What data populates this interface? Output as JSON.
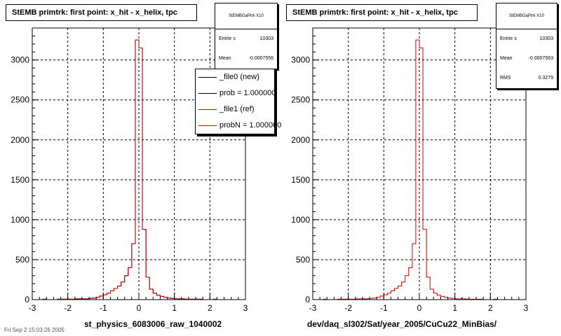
{
  "panels": [
    {
      "title": "StEMB primtrk: first point: x_hit - x_helix, tpc",
      "xlabel": "st_physics_6083006_raw_1040002",
      "stats": {
        "name": "StEMBGaPtrk X10",
        "rows": [
          {
            "label": "Entrie s",
            "value": "10303"
          },
          {
            "label": "Mean",
            "value": "-0.0007556"
          }
        ]
      },
      "legend": [
        {
          "label": "_file0 (new)",
          "color": "#000000"
        },
        {
          "label": "prob = 1.000000",
          "color": "#000000"
        },
        {
          "label": "_file1 (ref)",
          "color": "#cc0000"
        },
        {
          "label": "probN = 1.000000",
          "color": "#cc0000"
        }
      ]
    },
    {
      "title": "StEMB primtrk: first point: x_hit - x_helix, tpc",
      "xlabel": "dev/daq_sl302/Sat/year_2005/CuCu22_MinBias/",
      "stats": {
        "name": "StEMBGaPtrk X10",
        "rows": [
          {
            "label": "Entrie s",
            "value": "10303"
          },
          {
            "label": "Mean",
            "value": "-0.0007563"
          },
          {
            "label": "RMS",
            "value": "0.3279"
          }
        ]
      }
    }
  ],
  "footer_date": "Fri Sep 2 15:03:26 2005",
  "chart_data": [
    {
      "type": "histogram",
      "title": "StEMB primtrk: first point: x_hit - x_helix, tpc",
      "xlabel": "st_physics_6083006_raw_1040002",
      "xlim": [
        -3,
        3
      ],
      "ylim": [
        0,
        3400
      ],
      "xticks": [
        -3,
        -2,
        -1,
        0,
        1,
        2,
        3
      ],
      "yticks": [
        0,
        500,
        1000,
        1500,
        2000,
        2500,
        3000
      ],
      "grid": true,
      "bin_edges": [
        -3.0,
        -2.9,
        -2.8,
        -2.7,
        -2.6,
        -2.5,
        -2.4,
        -2.3,
        -2.2,
        -2.1,
        -2.0,
        -1.9,
        -1.8,
        -1.7,
        -1.6,
        -1.5,
        -1.4,
        -1.3,
        -1.2,
        -1.1,
        -1.0,
        -0.9,
        -0.8,
        -0.7,
        -0.6,
        -0.5,
        -0.4,
        -0.3,
        -0.2,
        -0.1,
        0.0,
        0.1,
        0.2,
        0.3,
        0.4,
        0.5,
        0.6,
        0.7,
        0.8,
        0.9,
        1.0,
        1.1,
        1.2,
        1.3,
        1.4,
        1.5,
        1.6,
        1.7,
        1.8,
        1.9,
        2.0,
        2.1,
        2.2,
        2.3,
        2.4,
        2.5,
        2.6,
        2.7,
        2.8,
        2.9,
        3.0
      ],
      "series": [
        {
          "color": "#000000",
          "values": [
            0,
            0,
            0,
            5,
            0,
            0,
            0,
            5,
            5,
            5,
            5,
            5,
            10,
            10,
            10,
            10,
            15,
            20,
            30,
            45,
            60,
            80,
            110,
            140,
            170,
            220,
            300,
            400,
            700,
            3250,
            3150,
            880,
            280,
            130,
            80,
            55,
            40,
            30,
            20,
            15,
            10,
            10,
            10,
            5,
            5,
            5,
            5,
            5,
            0,
            0,
            0,
            5,
            0,
            0,
            0,
            0,
            0,
            0,
            0,
            0
          ]
        },
        {
          "color": "#cc0000",
          "values": [
            0,
            0,
            0,
            5,
            0,
            0,
            0,
            5,
            5,
            5,
            5,
            5,
            10,
            10,
            10,
            10,
            15,
            20,
            30,
            45,
            60,
            80,
            110,
            140,
            170,
            220,
            300,
            400,
            700,
            3250,
            3150,
            880,
            280,
            130,
            80,
            55,
            40,
            30,
            20,
            15,
            10,
            10,
            10,
            5,
            5,
            5,
            5,
            5,
            0,
            0,
            0,
            5,
            0,
            0,
            0,
            0,
            0,
            0,
            0,
            0
          ]
        }
      ]
    },
    {
      "type": "histogram",
      "title": "StEMB primtrk: first point: x_hit - x_helix, tpc",
      "xlabel": "dev/daq_sl302/Sat/year_2005/CuCu22_MinBias/",
      "xlim": [
        -3,
        3
      ],
      "ylim": [
        0,
        3400
      ],
      "xticks": [
        -3,
        -2,
        -1,
        0,
        1,
        2,
        3
      ],
      "yticks": [
        0,
        500,
        1000,
        1500,
        2000,
        2500,
        3000
      ],
      "grid": true,
      "bin_edges": [
        -3.0,
        -2.9,
        -2.8,
        -2.7,
        -2.6,
        -2.5,
        -2.4,
        -2.3,
        -2.2,
        -2.1,
        -2.0,
        -1.9,
        -1.8,
        -1.7,
        -1.6,
        -1.5,
        -1.4,
        -1.3,
        -1.2,
        -1.1,
        -1.0,
        -0.9,
        -0.8,
        -0.7,
        -0.6,
        -0.5,
        -0.4,
        -0.3,
        -0.2,
        -0.1,
        0.0,
        0.1,
        0.2,
        0.3,
        0.4,
        0.5,
        0.6,
        0.7,
        0.8,
        0.9,
        1.0,
        1.1,
        1.2,
        1.3,
        1.4,
        1.5,
        1.6,
        1.7,
        1.8,
        1.9,
        2.0,
        2.1,
        2.2,
        2.3,
        2.4,
        2.5,
        2.6,
        2.7,
        2.8,
        2.9,
        3.0
      ],
      "series": [
        {
          "color": "#cc0000",
          "values": [
            0,
            0,
            0,
            5,
            0,
            0,
            0,
            5,
            5,
            5,
            5,
            5,
            10,
            10,
            10,
            10,
            15,
            20,
            30,
            45,
            60,
            80,
            110,
            140,
            170,
            220,
            300,
            400,
            700,
            3250,
            3150,
            880,
            280,
            130,
            80,
            55,
            40,
            30,
            20,
            15,
            10,
            10,
            10,
            5,
            5,
            5,
            5,
            5,
            0,
            0,
            0,
            5,
            0,
            0,
            0,
            0,
            0,
            0,
            0,
            0
          ]
        }
      ]
    }
  ]
}
